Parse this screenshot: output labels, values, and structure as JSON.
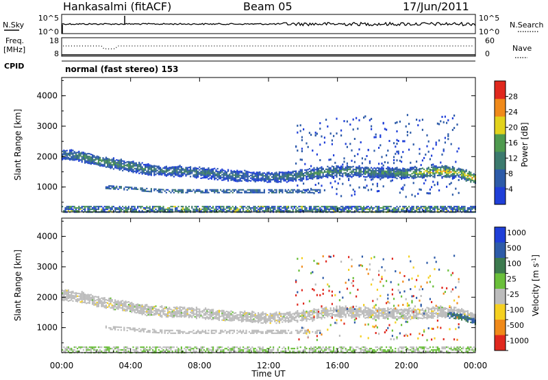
{
  "header": {
    "station": "Hankasalmi (fitACF)",
    "beam": "Beam 05",
    "date": "17/Jun/2011"
  },
  "nsky_panel": {
    "left_label": "N.Sky",
    "left_ticks": [
      "10^5",
      "10^0"
    ],
    "right_ticks": [
      "10^5",
      "10^0"
    ],
    "right_label": "N.Search"
  },
  "freq_panel": {
    "left_label_1": "Freq.",
    "left_label_2": "[MHz]",
    "left_ticks": [
      "18",
      "8"
    ],
    "right_ticks": [
      "60",
      "0"
    ],
    "right_label": "Nave"
  },
  "cpid": {
    "label": "CPID",
    "mode_text": "normal (fast stereo) 153"
  },
  "x_axis": {
    "ticks": [
      "00:00",
      "04:00",
      "08:00",
      "12:00",
      "16:00",
      "20:00",
      "00:00"
    ],
    "label": "Time UT"
  },
  "y_axis": {
    "label": "Slant Range [km]",
    "ticks": [
      "1000",
      "2000",
      "3000",
      "4000"
    ]
  },
  "power_colorbar": {
    "label": "Power [dB]",
    "ticks": [
      "4",
      "8",
      "12",
      "16",
      "20",
      "24",
      "28"
    ],
    "colors": [
      "#1f3fd8",
      "#2d5ba8",
      "#3c7a6e",
      "#4f9a4f",
      "#e2d21c",
      "#f08a1a",
      "#e0281e"
    ]
  },
  "velocity_colorbar": {
    "label": "Velocity [m s^-1]",
    "ticks": [
      "1000",
      "500",
      "100",
      "25",
      "-25",
      "-100",
      "-500",
      "-1000"
    ],
    "colors": [
      "#1f3fd8",
      "#2d5ba8",
      "#3c7a4e",
      "#6abf3a",
      "#bcbcbc",
      "#f5d020",
      "#f08a1a",
      "#e0281e"
    ]
  },
  "chart_data": [
    {
      "type": "heatmap",
      "title": "",
      "xlabel": "Time UT",
      "ylabel": "Slant Range [km]",
      "colorbar_label": "Power [dB]",
      "x_range_hours": [
        0,
        24
      ],
      "y_range_km": [
        180,
        4600
      ],
      "c_range": [
        0,
        30
      ],
      "main_echo_band_km": {
        "time_hours": [
          0,
          1,
          2,
          3,
          4,
          5,
          6,
          7,
          8,
          9,
          10,
          11,
          12,
          13,
          14,
          15,
          16,
          17,
          18,
          19,
          20,
          21,
          22,
          23,
          24
        ],
        "range_km": [
          2100,
          2050,
          1900,
          1800,
          1700,
          1600,
          1550,
          1550,
          1500,
          1450,
          1400,
          1380,
          1350,
          1370,
          1420,
          1500,
          1550,
          1550,
          1500,
          1500,
          1480,
          1500,
          1550,
          1500,
          1300
        ],
        "power_db": [
          10,
          12,
          14,
          14,
          12,
          12,
          10,
          10,
          10,
          10,
          10,
          8,
          10,
          10,
          12,
          14,
          14,
          12,
          12,
          14,
          14,
          20,
          22,
          18,
          24
        ]
      }
    },
    {
      "type": "heatmap",
      "title": "",
      "xlabel": "Time UT",
      "ylabel": "Slant Range [km]",
      "colorbar_label": "Velocity [m s^-1]",
      "x_range_hours": [
        0,
        24
      ],
      "y_range_km": [
        180,
        4600
      ],
      "c_range": [
        -1000,
        1000
      ]
    }
  ]
}
